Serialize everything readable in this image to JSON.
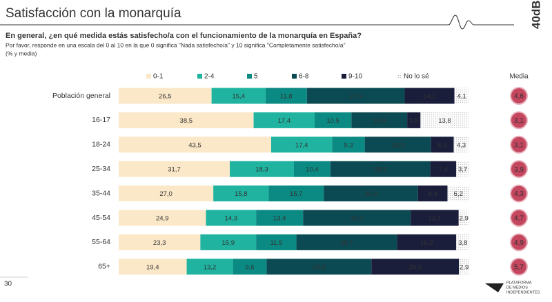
{
  "page": {
    "brand": "40dB.",
    "page_number": "30",
    "footer_logo": [
      "PLATAFORMA",
      "DE MEDIOS",
      "INDEPENDIENTES"
    ]
  },
  "chart_data": {
    "type": "stacked-bar-horizontal",
    "title": "Satisfacción con la monarquía",
    "question": "En general, ¿en qué medida estás satisfecho/a con el funcionamiento de la monarquía en España?",
    "note": "Por favor, responde en una escala del 0 al 10 en la que 0 significa \"Nada satisfecho/a\" y 10 significa \"Completamente satisfecho/a\"",
    "units": "(% y media)",
    "xlim": [
      0,
      100
    ],
    "categories": [
      "Población general",
      "16-17",
      "18-24",
      "25-34",
      "35-44",
      "45-54",
      "55-64",
      "65+"
    ],
    "series": [
      {
        "name": "0-1",
        "color": "#fbe8c8",
        "values": [
          26.5,
          38.5,
          43.5,
          31.7,
          27.0,
          24.9,
          23.3,
          19.4
        ],
        "value_labels": [
          "26,5",
          "38,5",
          "43,5",
          "31,7",
          "27,0",
          "24,9",
          "23,3",
          "19,4"
        ]
      },
      {
        "name": "2-4",
        "color": "#1fb3a0",
        "values": [
          15.4,
          17.4,
          17.4,
          18.3,
          15.8,
          14.3,
          15.9,
          13.2
        ],
        "value_labels": [
          "15,4",
          "17,4",
          "17,4",
          "18,3",
          "15,8",
          "14,3",
          "15,9",
          "13,2"
        ]
      },
      {
        "name": "5",
        "color": "#0b8a83",
        "values": [
          11.8,
          10.5,
          9.3,
          10.4,
          15.7,
          13.4,
          11.5,
          9.6
        ],
        "value_labels": [
          "11,8",
          "10,5",
          "9,3",
          "10,4",
          "15,7",
          "13,4",
          "11,5",
          "9,6"
        ]
      },
      {
        "name": "6-8",
        "color": "#0c4a53",
        "values": [
          27.9,
          15.9,
          18.9,
          28.5,
          26.9,
          30.7,
          28.7,
          29.9
        ],
        "value_labels": [
          "27,9",
          "15,9",
          "18,9",
          "28,5",
          "26,9",
          "30,7",
          "28,7",
          "29,9"
        ]
      },
      {
        "name": "9-10",
        "color": "#1b1e3b",
        "values": [
          14.2,
          3.8,
          6.5,
          7.4,
          8.4,
          13.7,
          16.9,
          25.0
        ],
        "value_labels": [
          "14,2",
          "3,8",
          "6,5",
          "7,4",
          "8,4",
          "13,7",
          "16,9",
          "25,0"
        ]
      },
      {
        "name": "No lo sé",
        "color": "#c8c8c8",
        "pattern": "dots",
        "values": [
          4.1,
          13.8,
          4.3,
          3.7,
          6.2,
          2.9,
          3.8,
          2.9
        ],
        "value_labels": [
          "4,1",
          "13,8",
          "4,3",
          "3,7",
          "6,2",
          "2,9",
          "3,8",
          "2,9"
        ]
      }
    ],
    "mean": {
      "name": "Media",
      "color": "#c4465f",
      "values": [
        4.6,
        3.1,
        3.1,
        3.9,
        4.3,
        4.7,
        4.9,
        5.7
      ],
      "value_labels": [
        "4,6",
        "3,1",
        "3,1",
        "3,9",
        "4,3",
        "4,7",
        "4,9",
        "5,7"
      ]
    }
  }
}
